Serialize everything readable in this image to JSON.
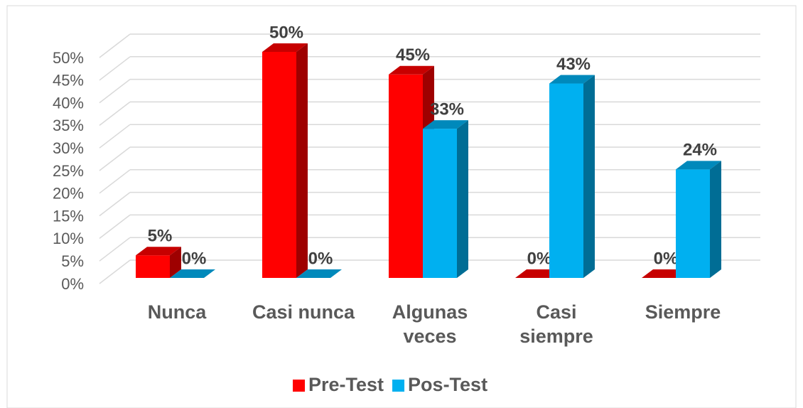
{
  "chart_data": {
    "type": "bar3d",
    "categories": [
      "Nunca",
      "Casi nunca",
      "Algunas veces",
      "Casi siempre",
      "Siempre"
    ],
    "series": [
      {
        "name": "Pre-Test",
        "color": "#ff0000",
        "values": [
          5,
          50,
          45,
          0,
          0
        ],
        "value_labels": [
          "5%",
          "50%",
          "45%",
          "0%",
          "0%"
        ]
      },
      {
        "name": "Pos-Test",
        "color": "#00b0f0",
        "values": [
          0,
          0,
          33,
          43,
          24
        ],
        "value_labels": [
          "0%",
          "0%",
          "33%",
          "43%",
          "24%"
        ]
      }
    ],
    "ylim": [
      0,
      50
    ],
    "yticks": [
      {
        "value": 0,
        "label": "0%"
      },
      {
        "value": 5,
        "label": "5%"
      },
      {
        "value": 10,
        "label": "10%"
      },
      {
        "value": 15,
        "label": "15%"
      },
      {
        "value": 20,
        "label": "20%"
      },
      {
        "value": 25,
        "label": "25%"
      },
      {
        "value": 30,
        "label": "30%"
      },
      {
        "value": 35,
        "label": "35%"
      },
      {
        "value": 40,
        "label": "40%"
      },
      {
        "value": 45,
        "label": "45%"
      },
      {
        "value": 50,
        "label": "50%"
      }
    ],
    "grid": true,
    "legend": "bottom"
  }
}
